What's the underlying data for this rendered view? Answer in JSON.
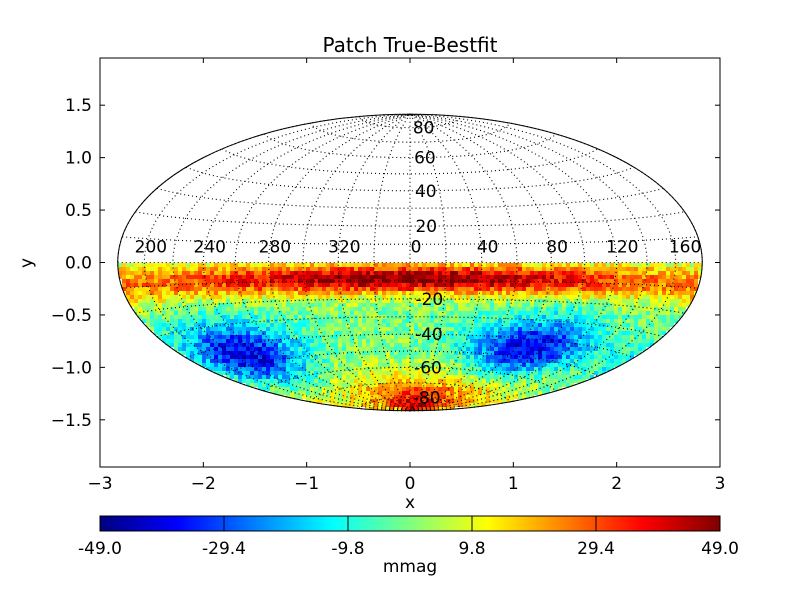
{
  "chart_data": {
    "type": "heatmap",
    "projection": "hammer-aitoff",
    "title": "Patch True-Bestfit",
    "xlabel": "x",
    "ylabel": "y",
    "xlim": [
      -3,
      3
    ],
    "ylim": [
      -1.95,
      1.95
    ],
    "xticks": [
      "−3",
      "−2",
      "−1",
      "0",
      "1",
      "2",
      "3"
    ],
    "yticks": [
      "1.5",
      "1.0",
      "0.5",
      "0.0",
      "−0.5",
      "−1.0",
      "−1.5"
    ],
    "grid": "dotted",
    "latitude_labels": [
      "80",
      "60",
      "40",
      "20",
      "-20",
      "-40",
      "-60",
      "-80"
    ],
    "longitude_labels": [
      "200",
      "240",
      "280",
      "320",
      "0",
      "40",
      "80",
      "120",
      "160"
    ],
    "data_coverage": "southern hemisphere only (y < 0)",
    "colormap": "jet",
    "colorbar": {
      "label": "mmag",
      "range": [
        -49.0,
        49.0
      ],
      "ticks": [
        "-49.0",
        "-29.4",
        "-9.8",
        "9.8",
        "29.4",
        "49.0"
      ]
    },
    "features": [
      {
        "description": "strong positive band",
        "lat_range": [
          -5,
          -20
        ],
        "approx_value": 49
      },
      {
        "description": "negative lobes",
        "lat_range": [
          -30,
          -60
        ],
        "lon_centers": [
          230,
          90
        ],
        "approx_value": -40
      },
      {
        "description": "positive cap near south pole",
        "lat_range": [
          -60,
          -90
        ],
        "approx_value": 45
      }
    ]
  }
}
